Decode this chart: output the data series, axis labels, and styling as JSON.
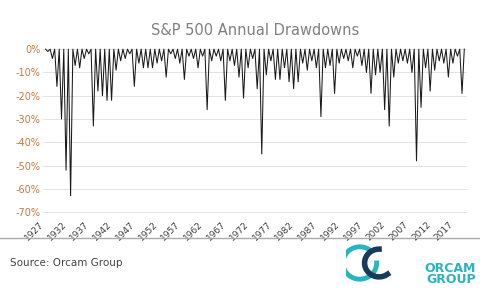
{
  "title": "S&P 500 Annual Drawdowns",
  "title_color": "#808080",
  "source_text": "Source: Orcam Group",
  "line_color": "#1a1a1a",
  "bg_color": "#ffffff",
  "grid_color": "#d8d8d8",
  "ylabel_color": "#c8783c",
  "xlabel_color": "#404040",
  "ylim": [
    -0.72,
    0.025
  ],
  "yticks": [
    0,
    -0.1,
    -0.2,
    -0.3,
    -0.4,
    -0.5,
    -0.6,
    -0.7
  ],
  "ytick_labels": [
    "0%",
    "-10%",
    "-20%",
    "-30%",
    "-40%",
    "-50%",
    "-60%",
    "-70%"
  ],
  "xtick_years": [
    1927,
    1932,
    1937,
    1942,
    1947,
    1952,
    1957,
    1962,
    1967,
    1972,
    1977,
    1982,
    1987,
    1992,
    1997,
    2002,
    2007,
    2012,
    2017
  ],
  "drawdown_by_year": {
    "1927": -0.01,
    "1928": -0.04,
    "1929": -0.16,
    "1930": -0.3,
    "1931": -0.52,
    "1932": -0.63,
    "1933": -0.07,
    "1934": -0.08,
    "1935": -0.04,
    "1936": -0.02,
    "1937": -0.33,
    "1938": -0.18,
    "1939": -0.2,
    "1940": -0.22,
    "1941": -0.22,
    "1942": -0.09,
    "1943": -0.05,
    "1944": -0.04,
    "1945": -0.02,
    "1946": -0.16,
    "1947": -0.06,
    "1948": -0.08,
    "1949": -0.08,
    "1950": -0.08,
    "1951": -0.06,
    "1952": -0.05,
    "1953": -0.12,
    "1954": -0.02,
    "1955": -0.04,
    "1956": -0.06,
    "1957": -0.13,
    "1958": -0.03,
    "1959": -0.04,
    "1960": -0.08,
    "1961": -0.03,
    "1962": -0.26,
    "1963": -0.05,
    "1964": -0.03,
    "1965": -0.05,
    "1966": -0.22,
    "1967": -0.05,
    "1968": -0.07,
    "1969": -0.12,
    "1970": -0.21,
    "1971": -0.08,
    "1972": -0.04,
    "1973": -0.17,
    "1974": -0.45,
    "1975": -0.11,
    "1976": -0.05,
    "1977": -0.13,
    "1978": -0.13,
    "1979": -0.08,
    "1980": -0.14,
    "1981": -0.17,
    "1982": -0.14,
    "1983": -0.06,
    "1984": -0.09,
    "1985": -0.05,
    "1986": -0.08,
    "1987": -0.29,
    "1988": -0.08,
    "1989": -0.07,
    "1990": -0.19,
    "1991": -0.06,
    "1992": -0.04,
    "1993": -0.05,
    "1994": -0.08,
    "1995": -0.03,
    "1996": -0.07,
    "1997": -0.1,
    "1998": -0.19,
    "1999": -0.11,
    "2000": -0.1,
    "2001": -0.26,
    "2002": -0.33,
    "2003": -0.12,
    "2004": -0.06,
    "2005": -0.05,
    "2006": -0.06,
    "2007": -0.1,
    "2008": -0.48,
    "2009": -0.25,
    "2010": -0.08,
    "2011": -0.18,
    "2012": -0.09,
    "2013": -0.05,
    "2014": -0.06,
    "2015": -0.12,
    "2016": -0.06,
    "2017": -0.03,
    "2018": -0.19
  },
  "orcam_teal": "#2ab4c0",
  "orcam_dark": "#1a3a5c"
}
